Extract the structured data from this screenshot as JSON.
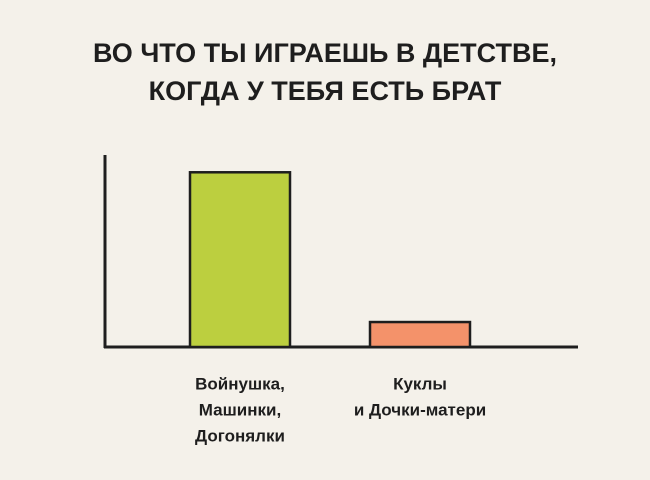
{
  "chart_data": {
    "type": "bar",
    "title": [
      "ВО ЧТО ТЫ ИГРАЕШЬ В ДЕТСТВЕ,",
      "КОГДА У ТЕБЯ ЕСТЬ БРАТ"
    ],
    "categories": [
      [
        "Войнушка,",
        "Машинки,",
        "Догонялки"
      ],
      [
        "Куклы",
        "и Дочки-матери"
      ]
    ],
    "values": [
      91,
      13
    ],
    "colors": [
      "#bccf3f",
      "#f4926a"
    ],
    "ylim": [
      0,
      100
    ]
  }
}
